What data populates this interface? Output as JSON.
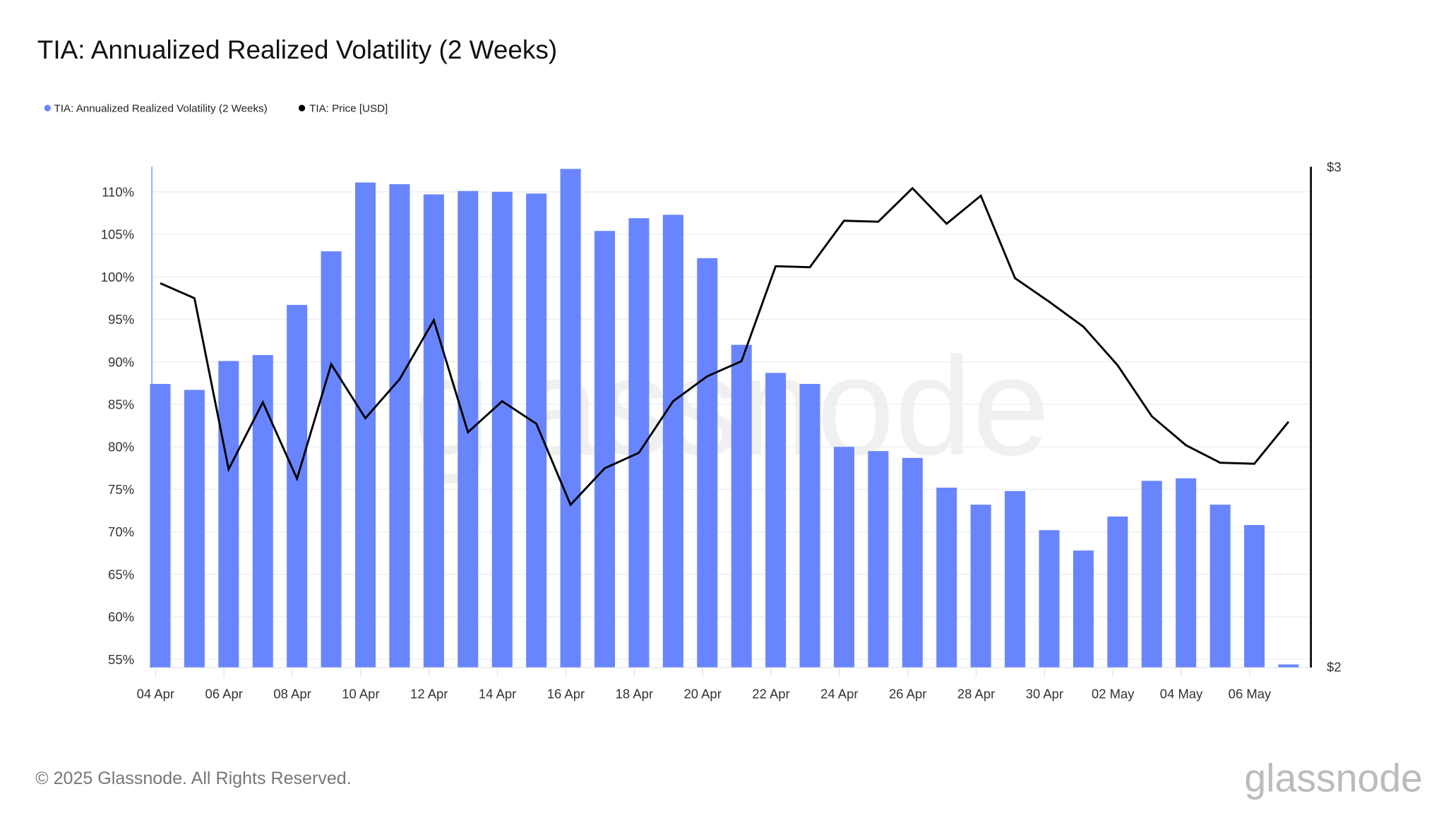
{
  "chart_data": {
    "type": "bar+line",
    "title": "TIA: Annualized Realized Volatility (2 Weeks)",
    "legend_placement": "top-left",
    "grid": true,
    "colors": {
      "volatility": "#6985fd",
      "price": "#000000"
    },
    "x": [
      "04 Apr",
      "05 Apr",
      "06 Apr",
      "07 Apr",
      "08 Apr",
      "09 Apr",
      "10 Apr",
      "11 Apr",
      "12 Apr",
      "13 Apr",
      "14 Apr",
      "15 Apr",
      "16 Apr",
      "17 Apr",
      "18 Apr",
      "19 Apr",
      "20 Apr",
      "21 Apr",
      "22 Apr",
      "23 Apr",
      "24 Apr",
      "25 Apr",
      "26 Apr",
      "27 Apr",
      "28 Apr",
      "29 Apr",
      "30 Apr",
      "01 May",
      "02 May",
      "03 May",
      "04 May",
      "05 May",
      "06 May",
      "07 May"
    ],
    "x_tick_labels": [
      "04 Apr",
      "06 Apr",
      "08 Apr",
      "10 Apr",
      "12 Apr",
      "14 Apr",
      "16 Apr",
      "18 Apr",
      "20 Apr",
      "22 Apr",
      "24 Apr",
      "26 Apr",
      "28 Apr",
      "30 Apr",
      "02 May",
      "04 May",
      "06 May"
    ],
    "y_left": {
      "ticks": [
        "55%",
        "60%",
        "65%",
        "70%",
        "75%",
        "80%",
        "85%",
        "90%",
        "95%",
        "100%",
        "105%",
        "110%"
      ],
      "range": [
        54,
        113
      ]
    },
    "y_right": {
      "ticks": [
        "$2",
        "$3"
      ],
      "range": [
        2,
        3
      ]
    },
    "series": [
      {
        "name": "TIA: Annualized Realized Volatility (2 Weeks)",
        "type": "bar",
        "axis": "left",
        "values": [
          87.4,
          86.7,
          90.1,
          90.8,
          96.7,
          103.0,
          111.1,
          110.9,
          109.7,
          110.1,
          110.0,
          109.8,
          112.7,
          105.4,
          106.9,
          107.3,
          102.2,
          92.0,
          88.7,
          87.4,
          80.0,
          79.5,
          78.7,
          75.2,
          73.2,
          74.8,
          70.2,
          67.8,
          71.8,
          76.0,
          76.3,
          73.2,
          70.8,
          54.4
        ]
      },
      {
        "name": "TIA: Price [USD]",
        "type": "line",
        "axis": "right",
        "values": [
          2.767,
          2.737,
          2.395,
          2.529,
          2.376,
          2.605,
          2.497,
          2.575,
          2.693,
          2.469,
          2.531,
          2.486,
          2.324,
          2.397,
          2.428,
          2.531,
          2.581,
          2.611,
          2.801,
          2.799,
          2.892,
          2.89,
          2.957,
          2.886,
          2.942,
          2.777,
          2.73,
          2.68,
          2.603,
          2.501,
          2.443,
          2.408,
          2.406,
          2.49
        ]
      }
    ]
  },
  "watermark": "glassnode",
  "footer": {
    "copyright": "© 2025 Glassnode. All Rights Reserved.",
    "logo": "glassnode"
  }
}
